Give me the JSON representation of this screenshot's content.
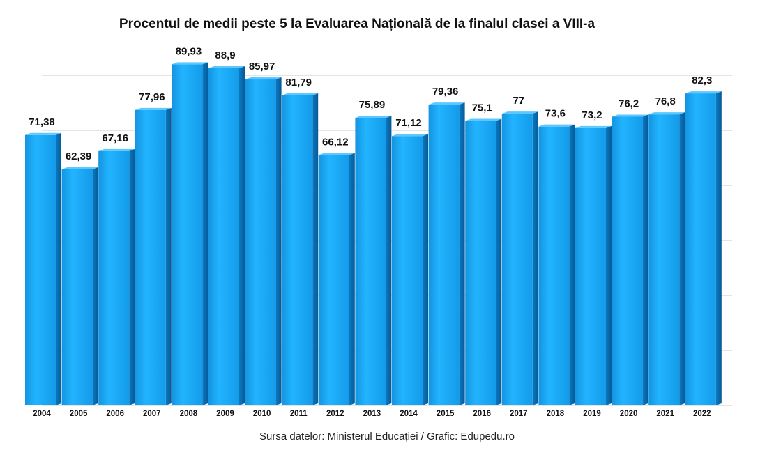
{
  "chart_data": {
    "type": "bar",
    "title": "Procentul de medii peste 5 la Evaluarea Națională de la finalul clasei a VIII-a",
    "xlabel": "",
    "ylabel": "",
    "categories": [
      "2004",
      "2005",
      "2006",
      "2007",
      "2008",
      "2009",
      "2010",
      "2011",
      "2012",
      "2013",
      "2014",
      "2015",
      "2016",
      "2017",
      "2018",
      "2019",
      "2020",
      "2021",
      "2022"
    ],
    "values": [
      71.38,
      62.39,
      67.16,
      77.96,
      89.93,
      88.9,
      85.97,
      81.79,
      66.12,
      75.89,
      71.12,
      79.36,
      75.1,
      77,
      73.6,
      73.2,
      76.2,
      76.8,
      82.3
    ],
    "value_labels": [
      "71,38",
      "62,39",
      "67,16",
      "77,96",
      "89,93",
      "88,9",
      "85,97",
      "81,79",
      "66,12",
      "75,89",
      "71,12",
      "79,36",
      "75,1",
      "77",
      "73,6",
      "73,2",
      "76,2",
      "76,8",
      "82,3"
    ],
    "ylim": [
      0,
      90
    ],
    "grid": true,
    "bar_color": "#1aa3f0",
    "bar_side_color": "#0a6fb5",
    "gridline_color": "#c8c8c8"
  },
  "source_note": "Sursa datelor: Ministerul Educației / Grafic: Edupedu.ro"
}
